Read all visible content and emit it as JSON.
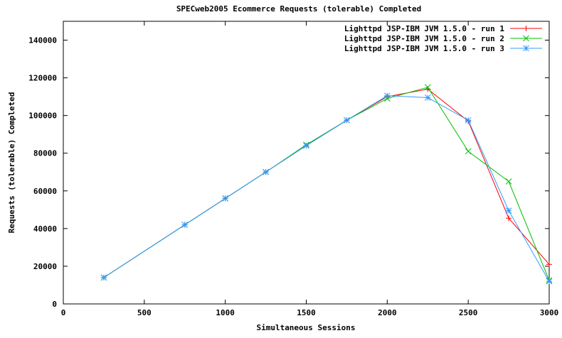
{
  "chart_data": {
    "type": "line",
    "title": "SPECweb2005 Ecommerce Requests (tolerable) Completed",
    "xlabel": "Simultaneous Sessions",
    "ylabel": "Requests (tolerable) Completed",
    "xlim": [
      0,
      3000
    ],
    "ylim": [
      0,
      150000
    ],
    "xticks": [
      0,
      500,
      1000,
      1500,
      2000,
      2500,
      3000
    ],
    "yticks": [
      0,
      20000,
      40000,
      60000,
      80000,
      100000,
      120000,
      140000
    ],
    "grid": false,
    "legend_position": "top-right",
    "x": [
      250,
      750,
      1000,
      1250,
      1500,
      1750,
      2000,
      2250,
      2500,
      2750,
      3000
    ],
    "series": [
      {
        "name": "Lighttpd JSP-IBM JVM 1.5.0 - run 1",
        "marker": "plus",
        "color": "#ff0000",
        "values": [
          14000,
          42000,
          56000,
          70000,
          84000,
          97500,
          110000,
          114000,
          97000,
          45500,
          21000
        ]
      },
      {
        "name": "Lighttpd JSP-IBM JVM 1.5.0 - run 2",
        "marker": "cross",
        "color": "#00c000",
        "values": [
          14000,
          42000,
          56000,
          70000,
          84500,
          97500,
          109000,
          115000,
          81000,
          65000,
          12500
        ]
      },
      {
        "name": "Lighttpd JSP-IBM JVM 1.5.0 - run 3",
        "marker": "star",
        "color": "#3399ff",
        "values": [
          14000,
          42000,
          56000,
          70000,
          84000,
          97500,
          110500,
          109500,
          97500,
          49500,
          12000
        ]
      }
    ]
  }
}
